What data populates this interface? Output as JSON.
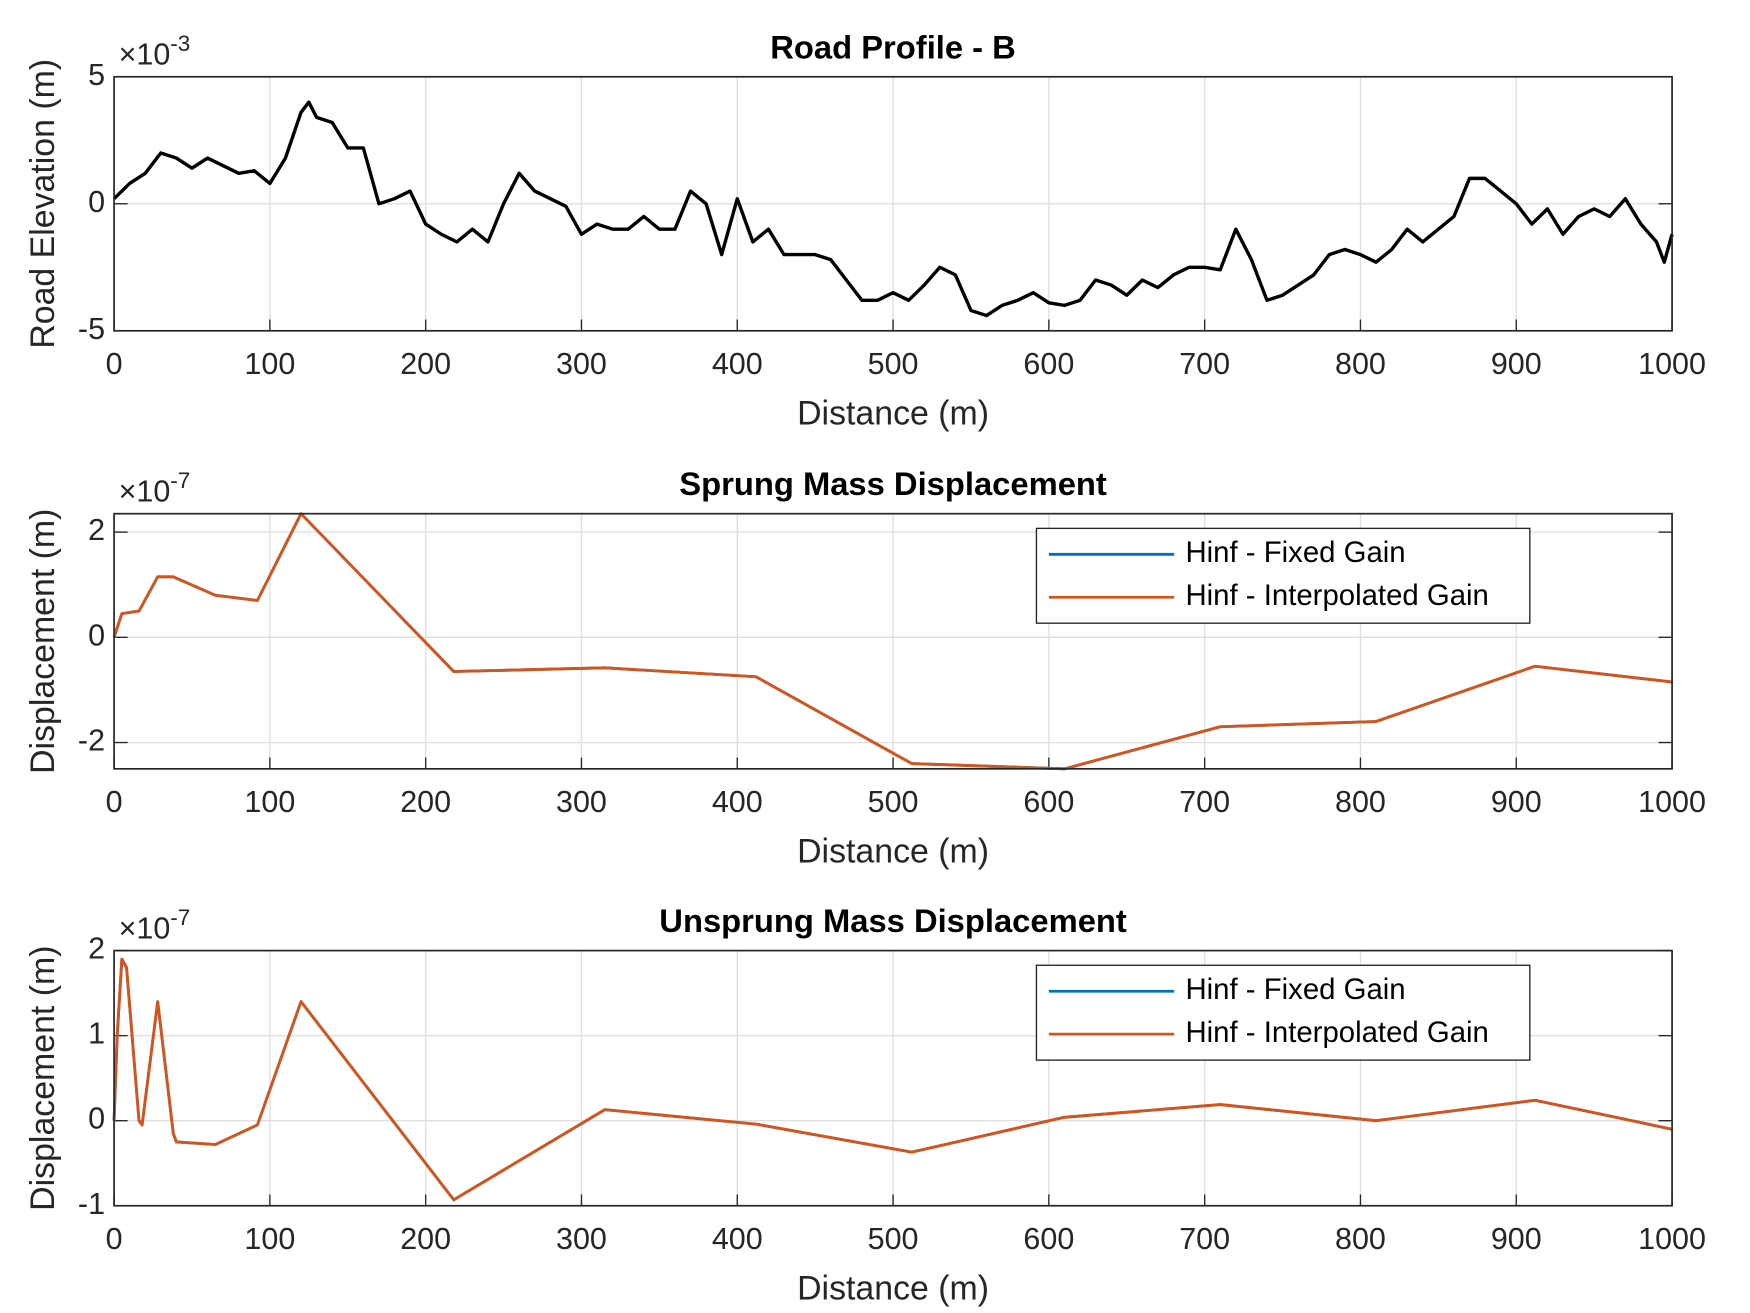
{
  "chart_data": [
    {
      "type": "line",
      "title": "Road Profile - B",
      "x_label": "Distance (m)",
      "y_label": "Road Elevation (m)",
      "y_multiplier": "×10",
      "y_exponent": "-3",
      "xlim": [
        0,
        1000
      ],
      "xticks": [
        0,
        100,
        200,
        300,
        400,
        500,
        600,
        700,
        800,
        900,
        1000
      ],
      "ylim": [
        -5,
        5
      ],
      "yticks": [
        -5,
        0,
        5
      ],
      "grid": true,
      "series": [
        {
          "name": null,
          "color": "#000000",
          "x": [
            0,
            10,
            20,
            30,
            40,
            50,
            60,
            70,
            80,
            90,
            100,
            110,
            120,
            125,
            130,
            140,
            150,
            160,
            170,
            180,
            190,
            200,
            210,
            220,
            230,
            240,
            250,
            260,
            270,
            280,
            290,
            300,
            310,
            320,
            330,
            340,
            350,
            360,
            370,
            380,
            390,
            400,
            410,
            420,
            430,
            440,
            450,
            460,
            470,
            480,
            490,
            500,
            510,
            520,
            530,
            540,
            550,
            560,
            570,
            580,
            590,
            600,
            610,
            620,
            630,
            640,
            650,
            660,
            670,
            680,
            690,
            700,
            710,
            720,
            730,
            740,
            750,
            760,
            770,
            780,
            790,
            800,
            810,
            820,
            830,
            840,
            850,
            860,
            870,
            880,
            890,
            900,
            910,
            920,
            930,
            940,
            950,
            960,
            970,
            980,
            990,
            995,
            1000
          ],
          "values": [
            0.2,
            0.8,
            1.2,
            2.0,
            1.8,
            1.4,
            1.8,
            1.5,
            1.2,
            1.3,
            0.8,
            1.8,
            3.6,
            4.0,
            3.4,
            3.2,
            2.2,
            2.2,
            0.0,
            0.2,
            0.5,
            -0.8,
            -1.2,
            -1.5,
            -1.0,
            -1.5,
            0.0,
            1.2,
            0.5,
            0.2,
            -0.1,
            -1.2,
            -0.8,
            -1.0,
            -1.0,
            -0.5,
            -1.0,
            -1.0,
            0.5,
            0.0,
            -2.0,
            0.2,
            -1.5,
            -1.0,
            -2.0,
            -2.0,
            -2.0,
            -2.2,
            -3.0,
            -3.8,
            -3.8,
            -3.5,
            -3.8,
            -3.2,
            -2.5,
            -2.8,
            -4.2,
            -4.4,
            -4.0,
            -3.8,
            -3.5,
            -3.9,
            -4.0,
            -3.8,
            -3.0,
            -3.2,
            -3.6,
            -3.0,
            -3.3,
            -2.8,
            -2.5,
            -2.5,
            -2.6,
            -1.0,
            -2.2,
            -3.8,
            -3.6,
            -3.2,
            -2.8,
            -2.0,
            -1.8,
            -2.0,
            -2.3,
            -1.8,
            -1.0,
            -1.5,
            -1.0,
            -0.5,
            1.0,
            1.0,
            0.5,
            0.0,
            -0.8,
            -0.2,
            -1.2,
            -0.5,
            -0.2,
            -0.5,
            0.2,
            -0.8,
            -1.5,
            -2.3,
            -1.2
          ]
        }
      ]
    },
    {
      "type": "line",
      "title": "Sprung Mass Displacement",
      "x_label": "Distance (m)",
      "y_label": "Displacement (m)",
      "y_multiplier": "×10",
      "y_exponent": "-7",
      "xlim": [
        0,
        1000
      ],
      "xticks": [
        0,
        100,
        200,
        300,
        400,
        500,
        600,
        700,
        800,
        900,
        1000
      ],
      "ylim": [
        -2.5,
        2.35
      ],
      "yticks": [
        -2,
        0,
        2
      ],
      "grid": true,
      "legend": "northeast",
      "series": [
        {
          "name": "Hinf - Fixed Gain",
          "color": "#0072BD",
          "x": [
            0,
            5,
            16,
            28,
            38,
            65,
            92,
            120,
            218,
            315,
            412,
            512,
            610,
            710,
            810,
            912,
            1000
          ],
          "values": [
            0,
            0.45,
            0.5,
            1.15,
            1.15,
            0.8,
            0.7,
            2.35,
            -0.65,
            -0.58,
            -0.75,
            -2.4,
            -2.5,
            -1.7,
            -1.6,
            -0.55,
            -0.85
          ]
        },
        {
          "name": "Hinf - Interpolated Gain",
          "color": "#D95319",
          "x": [
            0,
            5,
            16,
            28,
            38,
            65,
            92,
            120,
            218,
            315,
            412,
            512,
            610,
            710,
            810,
            912,
            1000
          ],
          "values": [
            0,
            0.45,
            0.5,
            1.15,
            1.15,
            0.8,
            0.7,
            2.35,
            -0.65,
            -0.58,
            -0.75,
            -2.4,
            -2.5,
            -1.7,
            -1.6,
            -0.55,
            -0.85
          ]
        }
      ]
    },
    {
      "type": "line",
      "title": "Unsprung Mass Displacement",
      "x_label": "Distance (m)",
      "y_label": "Displacement (m)",
      "y_multiplier": "×10",
      "y_exponent": "-7",
      "xlim": [
        0,
        1000
      ],
      "xticks": [
        0,
        100,
        200,
        300,
        400,
        500,
        600,
        700,
        800,
        900,
        1000
      ],
      "ylim": [
        -1,
        2
      ],
      "yticks": [
        -1,
        0,
        1,
        2
      ],
      "grid": true,
      "legend": "northeast",
      "series": [
        {
          "name": "Hinf - Fixed Gain",
          "color": "#0072BD",
          "x": [
            0,
            2,
            5,
            8,
            16,
            18,
            28,
            38,
            40,
            65,
            92,
            120,
            218,
            315,
            412,
            512,
            610,
            710,
            810,
            912,
            1000
          ],
          "values": [
            0,
            1.0,
            1.9,
            1.8,
            0.0,
            -0.05,
            1.4,
            -0.15,
            -0.25,
            -0.28,
            -0.05,
            1.4,
            -0.93,
            0.13,
            -0.04,
            -0.37,
            0.04,
            0.19,
            0,
            0.24,
            -0.1
          ]
        },
        {
          "name": "Hinf - Interpolated Gain",
          "color": "#D95319",
          "x": [
            0,
            2,
            5,
            8,
            16,
            18,
            28,
            38,
            40,
            65,
            92,
            120,
            218,
            315,
            412,
            512,
            610,
            710,
            810,
            912,
            1000
          ],
          "values": [
            0,
            1.0,
            1.9,
            1.8,
            0.0,
            -0.05,
            1.4,
            -0.15,
            -0.25,
            -0.28,
            -0.05,
            1.4,
            -0.93,
            0.13,
            -0.04,
            -0.37,
            0.04,
            0.19,
            0,
            0.24,
            -0.1
          ]
        }
      ]
    }
  ]
}
